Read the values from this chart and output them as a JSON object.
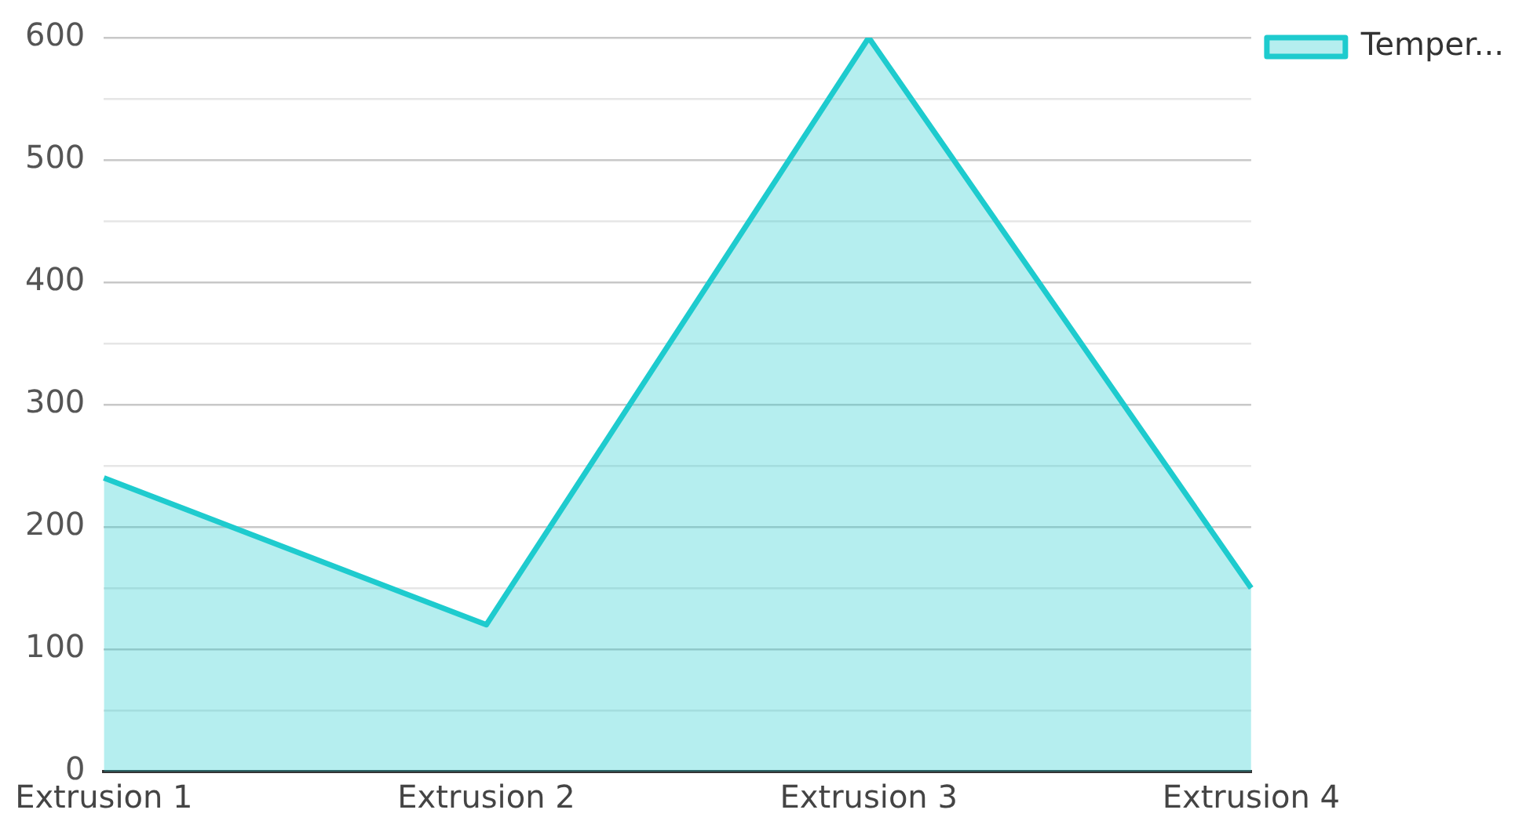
{
  "chart_data": {
    "type": "area",
    "categories": [
      "Extrusion 1",
      "Extrusion 2",
      "Extrusion 3",
      "Extrusion 4"
    ],
    "series": [
      {
        "name": "Temper...",
        "color": "#1ecbce",
        "values": [
          240,
          120,
          600,
          150
        ]
      }
    ],
    "ylim": [
      0,
      600
    ],
    "yticks": [
      0,
      {
        "value": 50,
        "label": null
      },
      100,
      {
        "value": 150,
        "label": null
      },
      200,
      {
        "value": 250,
        "label": null
      },
      300,
      {
        "value": 350,
        "label": null
      },
      400,
      {
        "value": 450,
        "label": null
      },
      500,
      {
        "value": 550,
        "label": null
      },
      600
    ],
    "grid": "y",
    "legend": "top right",
    "marker": "none",
    "line_style": "solid"
  }
}
